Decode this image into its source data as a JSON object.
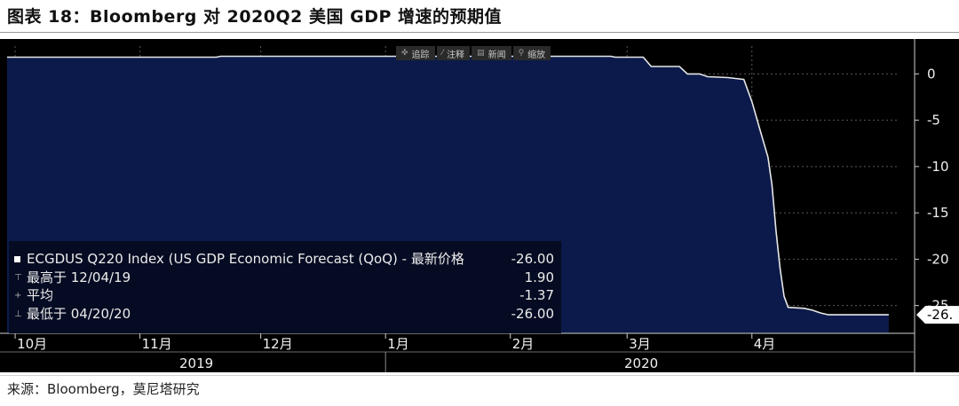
{
  "figure": {
    "title": "图表 18：Bloomberg 对 2020Q2 美国 GDP 增速的预期值",
    "source": "来源：Bloomberg，莫尼塔研究"
  },
  "toolbar": [
    {
      "icon": "crosshair-icon",
      "glyph": "✜",
      "label": "追踪"
    },
    {
      "icon": "annotate-icon",
      "glyph": "⁄",
      "label": "注释"
    },
    {
      "icon": "news-icon",
      "glyph": "▤",
      "label": "新闻"
    },
    {
      "icon": "zoom-icon",
      "glyph": "⚲",
      "label": "缩放"
    }
  ],
  "legend": {
    "series_label": "ECGDUS Q220 Index (US GDP Economic Forecast (QoQ) - 最新价格",
    "series_value": "-26.00",
    "high_label": "最高于 12/04/19",
    "high_value": "1.90",
    "avg_label": "平均",
    "avg_value": "-1.37",
    "low_label": "最低于 04/20/20",
    "low_value": "-26.00"
  },
  "colors": {
    "fill": "#0b1a4a",
    "line": "#e8e8e8",
    "grid": "#5a5a5a",
    "axis_text": "#f0f0f0",
    "label_box": "#ffffff"
  },
  "chart_data": {
    "type": "area",
    "title": "",
    "ylim": [
      -28,
      3
    ],
    "yticks": [
      0,
      -5,
      -10,
      -15,
      -20,
      -25
    ],
    "last_value_label": "-26.",
    "x_months": [
      {
        "label": "10月",
        "date": "2019-10-01"
      },
      {
        "label": "11月",
        "date": "2019-11-01"
      },
      {
        "label": "12月",
        "date": "2019-12-01"
      },
      {
        "label": "1月",
        "date": "2020-01-01"
      },
      {
        "label": "2月",
        "date": "2020-02-01"
      },
      {
        "label": "3月",
        "date": "2020-03-01"
      },
      {
        "label": "4月",
        "date": "2020-04-01"
      }
    ],
    "years": [
      {
        "label": "2019",
        "from": "2019-09-29",
        "to": "2020-01-01"
      },
      {
        "label": "2020",
        "from": "2020-01-01",
        "to": "2020-05-07"
      }
    ],
    "x_range": [
      "2019-09-29",
      "2020-05-07"
    ],
    "series": [
      {
        "points": [
          [
            "2019-09-29",
            1.8
          ],
          [
            "2019-11-20",
            1.8
          ],
          [
            "2019-11-21",
            1.9
          ],
          [
            "2020-02-26",
            1.9
          ],
          [
            "2020-02-27",
            1.8
          ],
          [
            "2020-03-05",
            1.8
          ],
          [
            "2020-03-07",
            0.8
          ],
          [
            "2020-03-14",
            0.8
          ],
          [
            "2020-03-16",
            0.0
          ],
          [
            "2020-03-19",
            0.0
          ],
          [
            "2020-03-21",
            -0.3
          ],
          [
            "2020-03-26",
            -0.4
          ],
          [
            "2020-03-30",
            -0.6
          ],
          [
            "2020-04-01",
            -3.0
          ],
          [
            "2020-04-03",
            -6.0
          ],
          [
            "2020-04-05",
            -9.0
          ],
          [
            "2020-04-06",
            -12.0
          ],
          [
            "2020-04-07",
            -17.0
          ],
          [
            "2020-04-08",
            -21.0
          ],
          [
            "2020-04-09",
            -24.0
          ],
          [
            "2020-04-10",
            -25.2
          ],
          [
            "2020-04-14",
            -25.3
          ],
          [
            "2020-04-16",
            -25.5
          ],
          [
            "2020-04-18",
            -25.8
          ],
          [
            "2020-04-20",
            -26.0
          ],
          [
            "2020-05-05",
            -26.0
          ]
        ]
      }
    ]
  }
}
